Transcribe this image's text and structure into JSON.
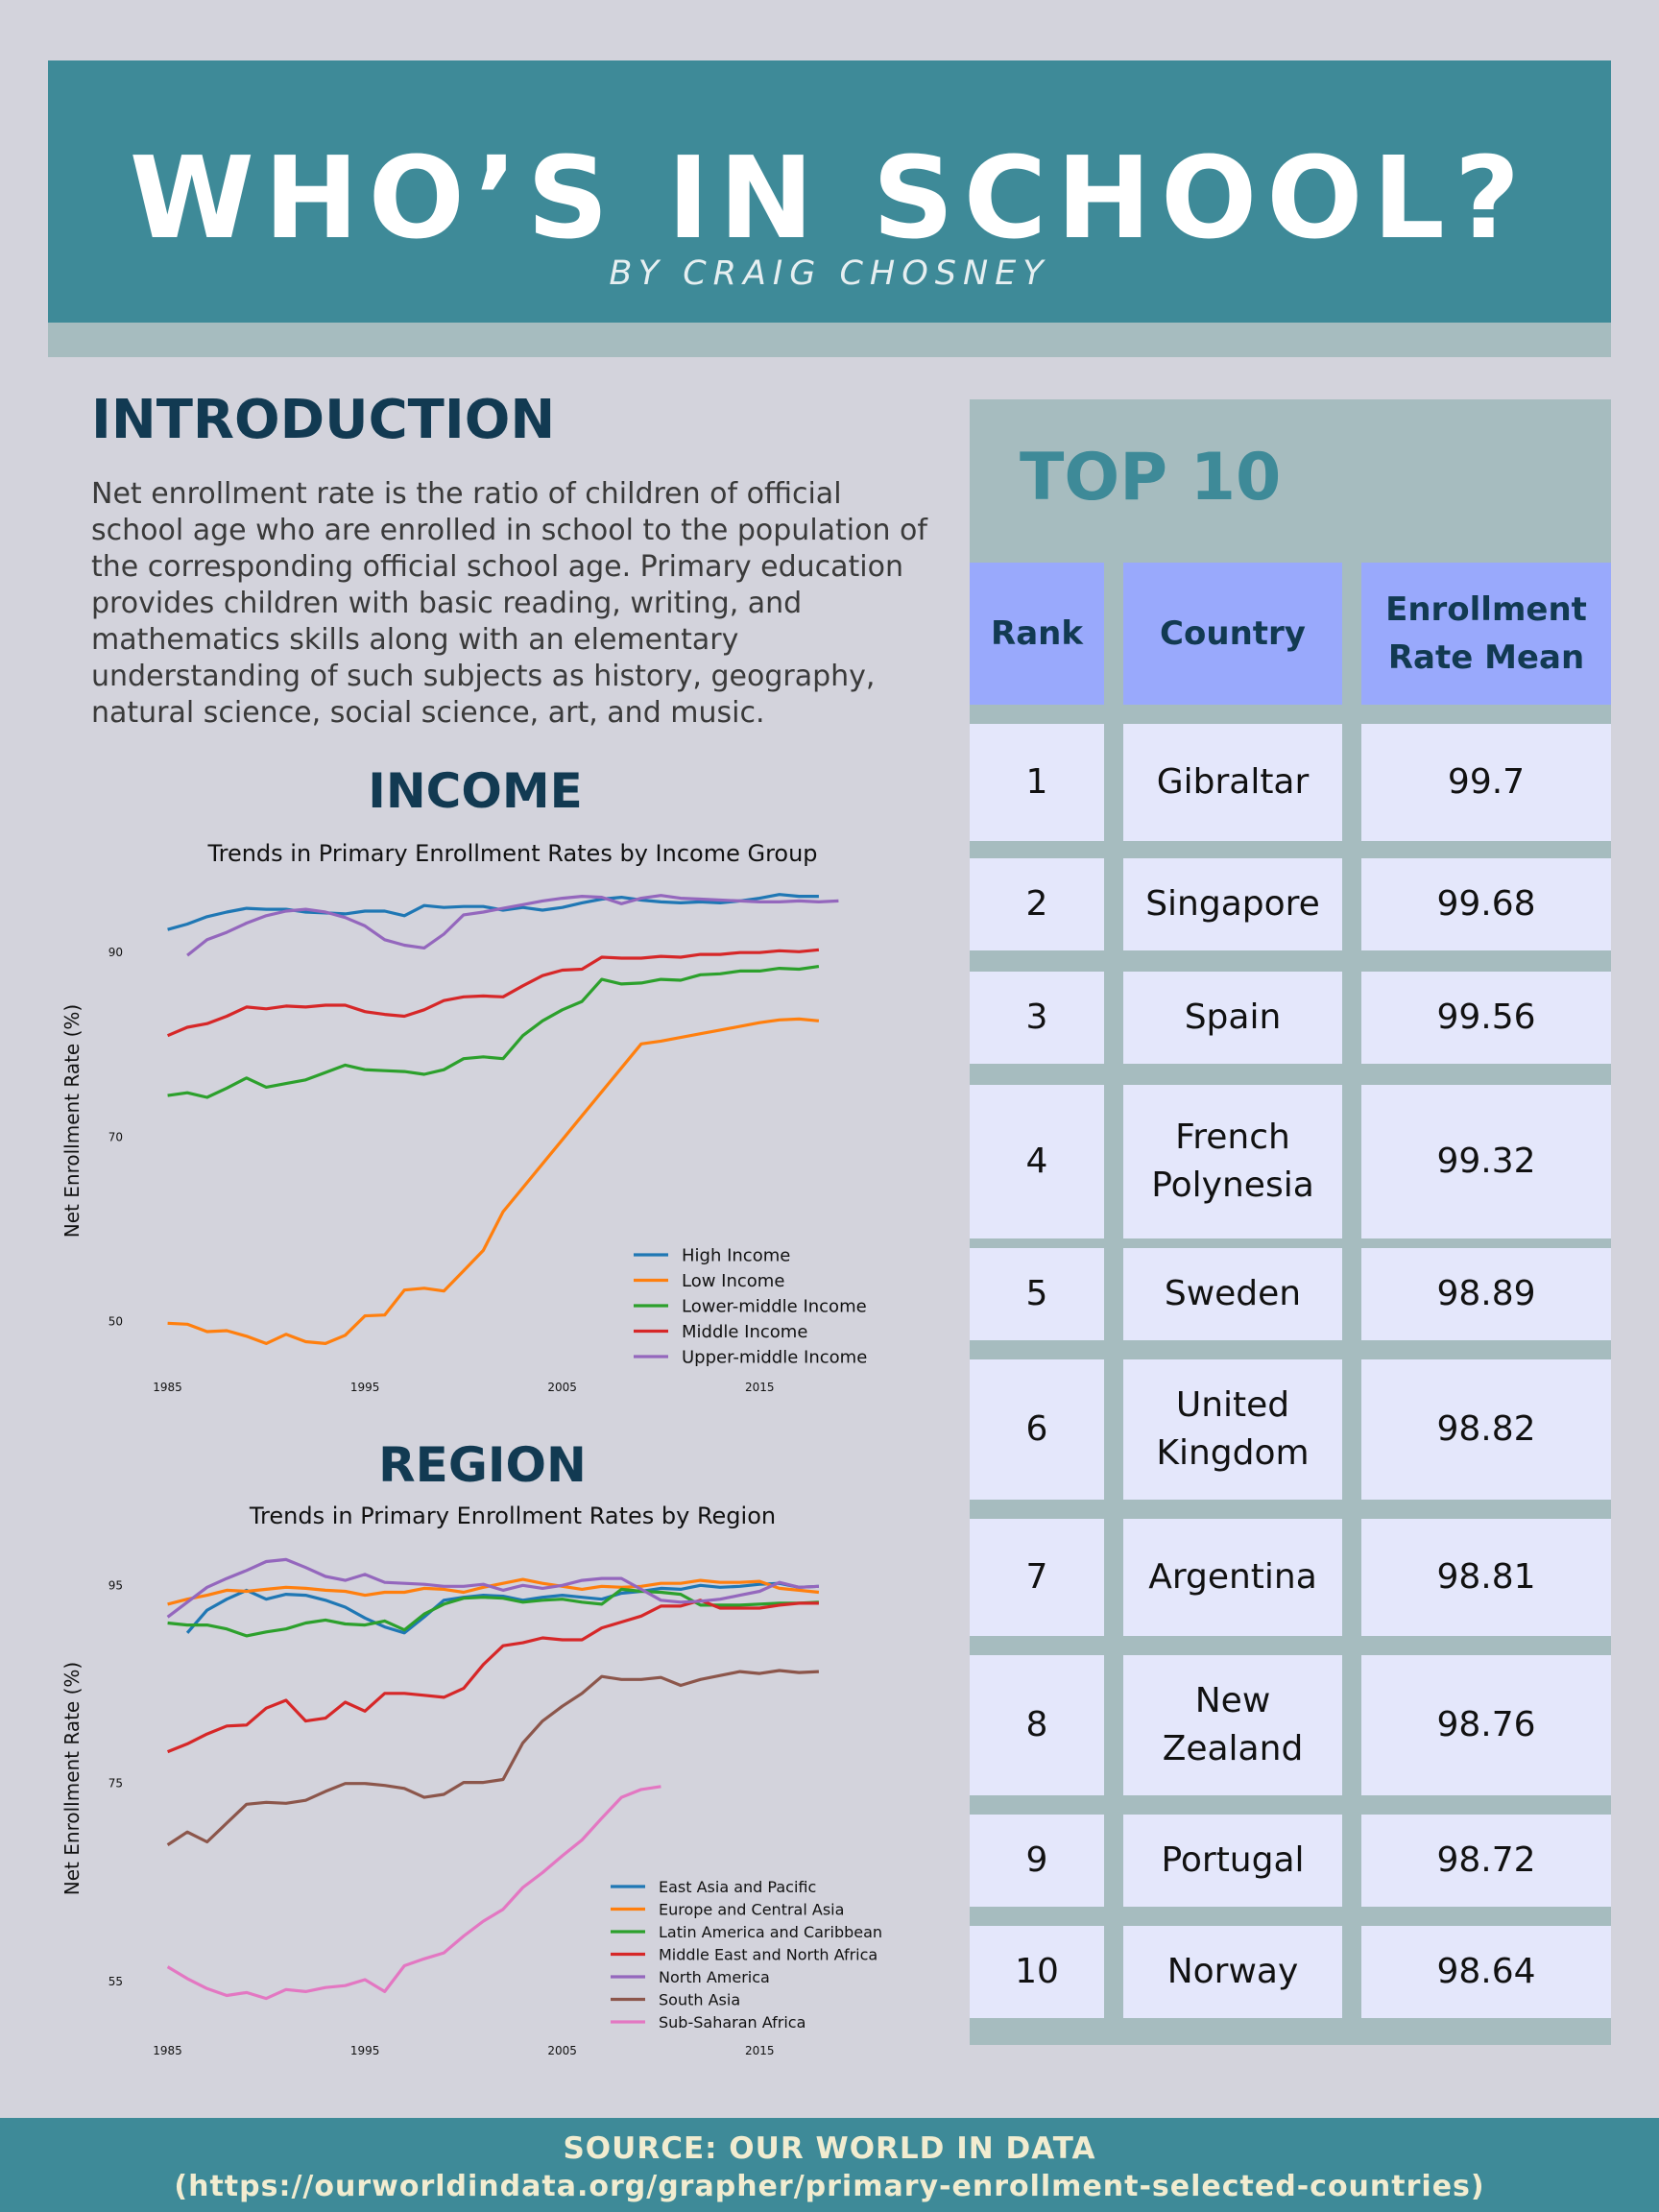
{
  "header": {
    "title": "WHO’S IN SCHOOL?",
    "byline": "BY CRAIG CHOSNEY"
  },
  "intro": {
    "heading": "INTRODUCTION",
    "text": "Net enrollment rate is the ratio of children of official school age who are enrolled in school to the population of the corresponding official school age. Primary education provides children with basic reading, writing, and mathematics skills along with an elementary understanding of such subjects as history, geography, natural science, social science, art, and music."
  },
  "income_section": {
    "heading": "INCOME"
  },
  "region_section": {
    "heading": "REGION"
  },
  "top10": {
    "title": "TOP 10",
    "columns": [
      "Rank",
      "Country",
      "Enrollment Rate Mean"
    ],
    "rows": [
      {
        "rank": "1",
        "country": "Gibraltar",
        "mean": "99.7"
      },
      {
        "rank": "2",
        "country": "Singapore",
        "mean": "99.68"
      },
      {
        "rank": "3",
        "country": "Spain",
        "mean": "99.56"
      },
      {
        "rank": "4",
        "country": "French Polynesia",
        "mean": "99.32"
      },
      {
        "rank": "5",
        "country": "Sweden",
        "mean": "98.89"
      },
      {
        "rank": "6",
        "country": "United Kingdom",
        "mean": "98.82"
      },
      {
        "rank": "7",
        "country": "Argentina",
        "mean": "98.81"
      },
      {
        "rank": "8",
        "country": "New Zealand",
        "mean": "98.76"
      },
      {
        "rank": "9",
        "country": "Portugal",
        "mean": "98.72"
      },
      {
        "rank": "10",
        "country": "Norway",
        "mean": "98.64"
      }
    ]
  },
  "footer": {
    "line1": "SOURCE: OUR WORLD IN DATA",
    "line2": "(https://ourworldindata.org/grapher/primary-enrollment-selected-countries)"
  },
  "chart_data": [
    {
      "type": "line",
      "title": "Trends in Primary Enrollment Rates by Income Group",
      "xlabel": "",
      "ylabel": "Net Enrollment Rate (%)",
      "xticks": [
        1985,
        1995,
        2005,
        2015
      ],
      "yticks": [
        50,
        70,
        90
      ],
      "xlim": [
        1984,
        2020
      ],
      "ylim": [
        46.5,
        97
      ],
      "legend": "lower-right",
      "grid": false,
      "series": [
        {
          "name": "High Income",
          "color": "#1f77b4",
          "start": 1985,
          "values": [
            92.5,
            93.1,
            93.9,
            94.4,
            94.8,
            94.7,
            94.7,
            94.4,
            94.3,
            94.2,
            94.5,
            94.5,
            94.0,
            95.1,
            94.9,
            95.0,
            95.0,
            94.6,
            94.9,
            94.6,
            94.9,
            95.4,
            95.8,
            96.0,
            95.7,
            95.5,
            95.4,
            95.5,
            95.4,
            95.6,
            95.9,
            96.3,
            96.1,
            96.1
          ]
        },
        {
          "name": "Low Income",
          "color": "#ff7f0e",
          "start": 1985,
          "values": [
            49.8,
            49.7,
            48.9,
            49.0,
            48.4,
            47.6,
            48.6,
            47.8,
            47.6,
            48.5,
            50.6,
            50.7,
            53.4,
            53.6,
            53.3,
            55.5,
            57.7,
            61.9,
            64.5,
            67.1,
            69.7,
            72.3,
            74.9,
            77.5,
            80.1,
            80.4,
            80.8,
            81.2,
            81.6,
            82.0,
            82.4,
            82.7,
            82.8,
            82.6
          ]
        },
        {
          "name": "Lower-middle Income",
          "color": "#2ca02c",
          "start": 1985,
          "values": [
            74.5,
            74.8,
            74.3,
            75.3,
            76.4,
            75.4,
            75.8,
            76.2,
            77.0,
            77.8,
            77.3,
            77.2,
            77.1,
            76.8,
            77.3,
            78.5,
            78.7,
            78.5,
            81.0,
            82.6,
            83.8,
            84.7,
            87.1,
            86.6,
            86.7,
            87.1,
            87.0,
            87.6,
            87.7,
            88.0,
            88.0,
            88.3,
            88.2,
            88.5
          ]
        },
        {
          "name": "Middle Income",
          "color": "#d62728",
          "start": 1985,
          "values": [
            81.0,
            81.9,
            82.3,
            83.1,
            84.1,
            83.9,
            84.2,
            84.1,
            84.3,
            84.3,
            83.6,
            83.3,
            83.1,
            83.8,
            84.8,
            85.2,
            85.3,
            85.2,
            86.4,
            87.5,
            88.1,
            88.2,
            89.5,
            89.4,
            89.4,
            89.6,
            89.5,
            89.8,
            89.8,
            90.0,
            90.0,
            90.2,
            90.1,
            90.3
          ]
        },
        {
          "name": "Upper-middle Income",
          "color": "#9467bd",
          "start": 1986,
          "values": [
            89.7,
            91.4,
            92.2,
            93.2,
            94.0,
            94.5,
            94.7,
            94.4,
            93.8,
            92.9,
            91.4,
            90.8,
            90.5,
            92.0,
            94.1,
            94.4,
            94.8,
            95.2,
            95.6,
            95.9,
            96.1,
            96.0,
            95.3,
            95.9,
            96.2,
            95.9,
            95.8,
            95.7,
            95.6,
            95.5,
            95.5,
            95.6,
            95.5,
            95.6
          ]
        }
      ]
    },
    {
      "type": "line",
      "title": "Trends in Primary Enrollment Rates by Region",
      "xlabel": "",
      "ylabel": "Net Enrollment Rate (%)",
      "xticks": [
        1985,
        1995,
        2005,
        2015
      ],
      "yticks": [
        55,
        75,
        95
      ],
      "xlim": [
        1984,
        2020
      ],
      "ylim": [
        52,
        99
      ],
      "legend": "lower-right",
      "grid": false,
      "series": [
        {
          "name": "East Asia and Pacific",
          "color": "#1f77b4",
          "start": 1986,
          "values": [
            90.2,
            92.5,
            93.6,
            94.5,
            93.6,
            94.1,
            94.0,
            93.5,
            92.8,
            91.7,
            90.8,
            90.2,
            91.8,
            93.5,
            93.8,
            94.0,
            93.9,
            93.5,
            93.8,
            94.0,
            93.8,
            93.6,
            94.2,
            94.4,
            94.7,
            94.6,
            95.0,
            94.8,
            94.9,
            95.1,
            95.2,
            94.8,
            94.9
          ]
        },
        {
          "name": "Europe and Central Asia",
          "color": "#ff7f0e",
          "start": 1985,
          "values": [
            93.1,
            93.6,
            94.0,
            94.5,
            94.4,
            94.6,
            94.8,
            94.7,
            94.5,
            94.4,
            94.0,
            94.3,
            94.3,
            94.7,
            94.6,
            94.3,
            94.8,
            95.2,
            95.6,
            95.2,
            94.9,
            94.6,
            94.9,
            94.8,
            94.9,
            95.2,
            95.2,
            95.5,
            95.3,
            95.3,
            95.4,
            94.7,
            94.5,
            94.3
          ]
        },
        {
          "name": "Latin America and Caribbean",
          "color": "#2ca02c",
          "start": 1985,
          "values": [
            91.2,
            91.0,
            91.0,
            90.6,
            89.9,
            90.3,
            90.6,
            91.2,
            91.5,
            91.1,
            91.0,
            91.4,
            90.5,
            92.1,
            93.1,
            93.7,
            93.8,
            93.7,
            93.3,
            93.5,
            93.6,
            93.3,
            93.1,
            94.6,
            94.4,
            94.3,
            94.1,
            93.0,
            93.0,
            93.0,
            93.1,
            93.2,
            93.2,
            93.3
          ]
        },
        {
          "name": "Middle East and North Africa",
          "color": "#d62728",
          "start": 1985,
          "values": [
            78.2,
            79.0,
            80.0,
            80.8,
            80.9,
            82.6,
            83.4,
            81.3,
            81.6,
            83.2,
            82.3,
            84.1,
            84.1,
            83.9,
            83.7,
            84.6,
            87.0,
            88.9,
            89.2,
            89.7,
            89.5,
            89.5,
            90.7,
            91.3,
            91.9,
            92.9,
            92.9,
            93.5,
            92.7,
            92.7,
            92.7,
            93.0,
            93.2,
            93.2
          ]
        },
        {
          "name": "North America",
          "color": "#9467bd",
          "start": 1985,
          "values": [
            91.8,
            93.3,
            94.8,
            95.7,
            96.5,
            97.4,
            97.6,
            96.8,
            95.9,
            95.5,
            96.1,
            95.3,
            95.2,
            95.1,
            94.9,
            94.9,
            95.1,
            94.5,
            95.0,
            94.7,
            95.0,
            95.5,
            95.7,
            95.7,
            94.6,
            93.5,
            93.3,
            93.4,
            93.6,
            94.0,
            94.4,
            95.3,
            94.8,
            94.9
          ]
        },
        {
          "name": "South Asia",
          "color": "#8c564b",
          "start": 1985,
          "values": [
            68.8,
            70.1,
            69.1,
            71.0,
            72.9,
            73.1,
            73.0,
            73.3,
            74.2,
            75.0,
            75.0,
            74.8,
            74.5,
            73.6,
            73.9,
            75.1,
            75.1,
            75.4,
            79.1,
            81.3,
            82.8,
            84.1,
            85.8,
            85.5,
            85.5,
            85.7,
            84.9,
            85.5,
            85.9,
            86.3,
            86.1,
            86.4,
            86.2,
            86.3
          ]
        },
        {
          "name": "Sub-Saharan Africa",
          "color": "#e377c2",
          "start": 1985,
          "values": [
            56.5,
            55.3,
            54.3,
            53.6,
            53.9,
            53.3,
            54.2,
            54.0,
            54.4,
            54.6,
            55.2,
            54.0,
            56.6,
            57.3,
            57.9,
            59.6,
            61.1,
            62.3,
            64.5,
            66.0,
            67.7,
            69.3,
            71.5,
            73.6,
            74.4,
            74.7
          ]
        }
      ]
    }
  ]
}
